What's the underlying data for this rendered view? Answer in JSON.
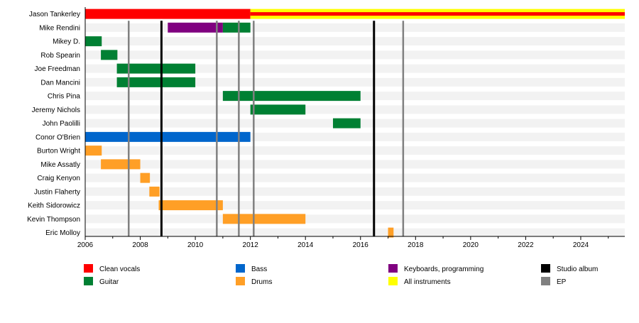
{
  "chart_data": {
    "type": "timeline",
    "xlim": [
      2006,
      2025.6
    ],
    "xticks": [
      2006,
      2008,
      2010,
      2012,
      2014,
      2016,
      2018,
      2020,
      2022,
      2024
    ],
    "members": [
      {
        "name": "Jason Tankerley",
        "spans": [
          {
            "role": "Clean vocals",
            "start": 2006,
            "end": 2025.6
          },
          {
            "role": "All instruments",
            "start": 2012.0,
            "end": 2025.6
          }
        ]
      },
      {
        "name": "Mike Rendini",
        "spans": [
          {
            "role": "Keyboards, programming",
            "start": 2009.0,
            "end": 2011.0
          },
          {
            "role": "Guitar",
            "start": 2011.0,
            "end": 2012.0
          }
        ]
      },
      {
        "name": "Mikey D.",
        "spans": [
          {
            "role": "Guitar",
            "start": 2006,
            "end": 2006.6
          }
        ]
      },
      {
        "name": "Rob Spearin",
        "spans": [
          {
            "role": "Guitar",
            "start": 2006.57,
            "end": 2007.17
          }
        ]
      },
      {
        "name": "Joe Freedman",
        "spans": [
          {
            "role": "Guitar",
            "start": 2007.15,
            "end": 2010.0
          }
        ]
      },
      {
        "name": "Dan Mancini",
        "spans": [
          {
            "role": "Guitar",
            "start": 2007.15,
            "end": 2010.0
          }
        ]
      },
      {
        "name": "Chris Pina",
        "spans": [
          {
            "role": "Guitar",
            "start": 2011.0,
            "end": 2016.0
          }
        ]
      },
      {
        "name": "Jeremy Nichols",
        "spans": [
          {
            "role": "Guitar",
            "start": 2012.0,
            "end": 2014.0
          }
        ]
      },
      {
        "name": "John Paolilli",
        "spans": [
          {
            "role": "Guitar",
            "start": 2015.0,
            "end": 2016.0
          }
        ]
      },
      {
        "name": "Conor O'Brien",
        "spans": [
          {
            "role": "Bass",
            "start": 2006,
            "end": 2012.0
          }
        ]
      },
      {
        "name": "Burton Wright",
        "spans": [
          {
            "role": "Drums",
            "start": 2006,
            "end": 2006.6
          }
        ]
      },
      {
        "name": "Mike Assatly",
        "spans": [
          {
            "role": "Drums",
            "start": 2006.57,
            "end": 2008.0
          }
        ]
      },
      {
        "name": "Craig Kenyon",
        "spans": [
          {
            "role": "Drums",
            "start": 2008.0,
            "end": 2008.35
          }
        ]
      },
      {
        "name": "Justin Flaherty",
        "spans": [
          {
            "role": "Drums",
            "start": 2008.33,
            "end": 2008.7
          }
        ]
      },
      {
        "name": "Keith Sidorowicz",
        "spans": [
          {
            "role": "Drums",
            "start": 2008.67,
            "end": 2011.0
          }
        ]
      },
      {
        "name": "Kevin Thompson",
        "spans": [
          {
            "role": "Drums",
            "start": 2011.0,
            "end": 2014.0
          }
        ]
      },
      {
        "name": "Eric Molloy",
        "spans": [
          {
            "role": "Drums",
            "start": 2017.0,
            "end": 2017.2
          }
        ]
      }
    ],
    "releases": [
      {
        "type": "EP",
        "date": 2007.58
      },
      {
        "type": "Studio album",
        "date": 2008.77
      },
      {
        "type": "EP",
        "date": 2010.78
      },
      {
        "type": "EP",
        "date": 2011.58
      },
      {
        "type": "EP",
        "date": 2012.12
      },
      {
        "type": "Studio album",
        "date": 2016.49
      },
      {
        "type": "EP",
        "date": 2017.55
      }
    ],
    "legend": [
      {
        "label": "Clean vocals",
        "color": "#ff0000"
      },
      {
        "label": "Guitar",
        "color": "#008033"
      },
      {
        "label": "Bass",
        "color": "#0066cc"
      },
      {
        "label": "Drums",
        "color": "#ff9f26"
      },
      {
        "label": "Keyboards, programming",
        "color": "#800080"
      },
      {
        "label": "All instruments",
        "color": "#ffff00"
      },
      {
        "label": "Studio album",
        "color": "#000000"
      },
      {
        "label": "EP",
        "color": "#808080"
      }
    ],
    "legend_placement": "bottom"
  }
}
